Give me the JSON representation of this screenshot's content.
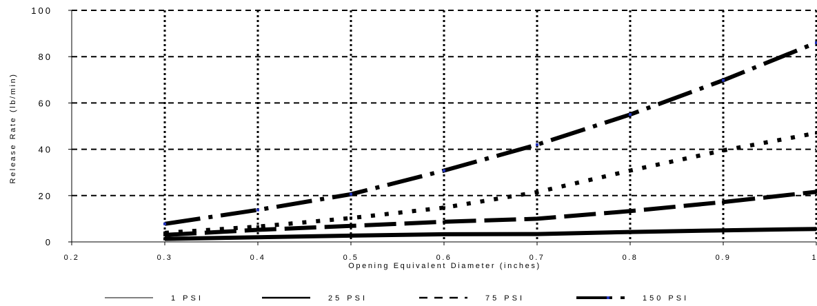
{
  "chart_data": {
    "type": "line",
    "title": "",
    "xlabel": "Opening Equivalent Diameter (inches)",
    "ylabel": "Release Rate (lb/min)",
    "xlim": [
      0.2,
      1.0
    ],
    "ylim": [
      0,
      100
    ],
    "x_ticks": [
      0.2,
      0.3,
      0.4,
      0.5,
      0.6,
      0.7,
      0.8,
      0.9,
      1.0
    ],
    "x_tick_labels": [
      "0.2",
      "0.3",
      "0.4",
      "0.5",
      "0.6",
      "0.7",
      "0.8",
      "0.9",
      "1"
    ],
    "y_ticks": [
      0,
      20,
      40,
      60,
      80,
      100
    ],
    "y_tick_labels": [
      "0",
      "20",
      "40",
      "60",
      "80",
      "100"
    ],
    "grid": true,
    "legend_position": "bottom",
    "x": [
      0.3,
      0.4,
      0.5,
      0.6,
      0.7,
      0.8,
      0.9,
      1.0
    ],
    "series": [
      {
        "name": "1 PSI",
        "color": "#000000",
        "values": [
          1.3,
          2.0,
          2.7,
          3.3,
          3.4,
          4.3,
          5.0,
          5.6
        ]
      },
      {
        "name": "25 PSI",
        "color": "#000000",
        "values": [
          3.0,
          5.2,
          6.9,
          8.7,
          10.0,
          13.3,
          17.2,
          21.6
        ]
      },
      {
        "name": "75 PSI",
        "color": "#000000",
        "values": [
          3.9,
          6.6,
          10.3,
          14.8,
          21.5,
          30.8,
          39.5,
          47.0
        ]
      },
      {
        "name": "150 PSI",
        "color": "#000000",
        "values": [
          7.8,
          13.8,
          20.6,
          30.8,
          42.0,
          55.0,
          69.8,
          86.0
        ]
      }
    ]
  }
}
